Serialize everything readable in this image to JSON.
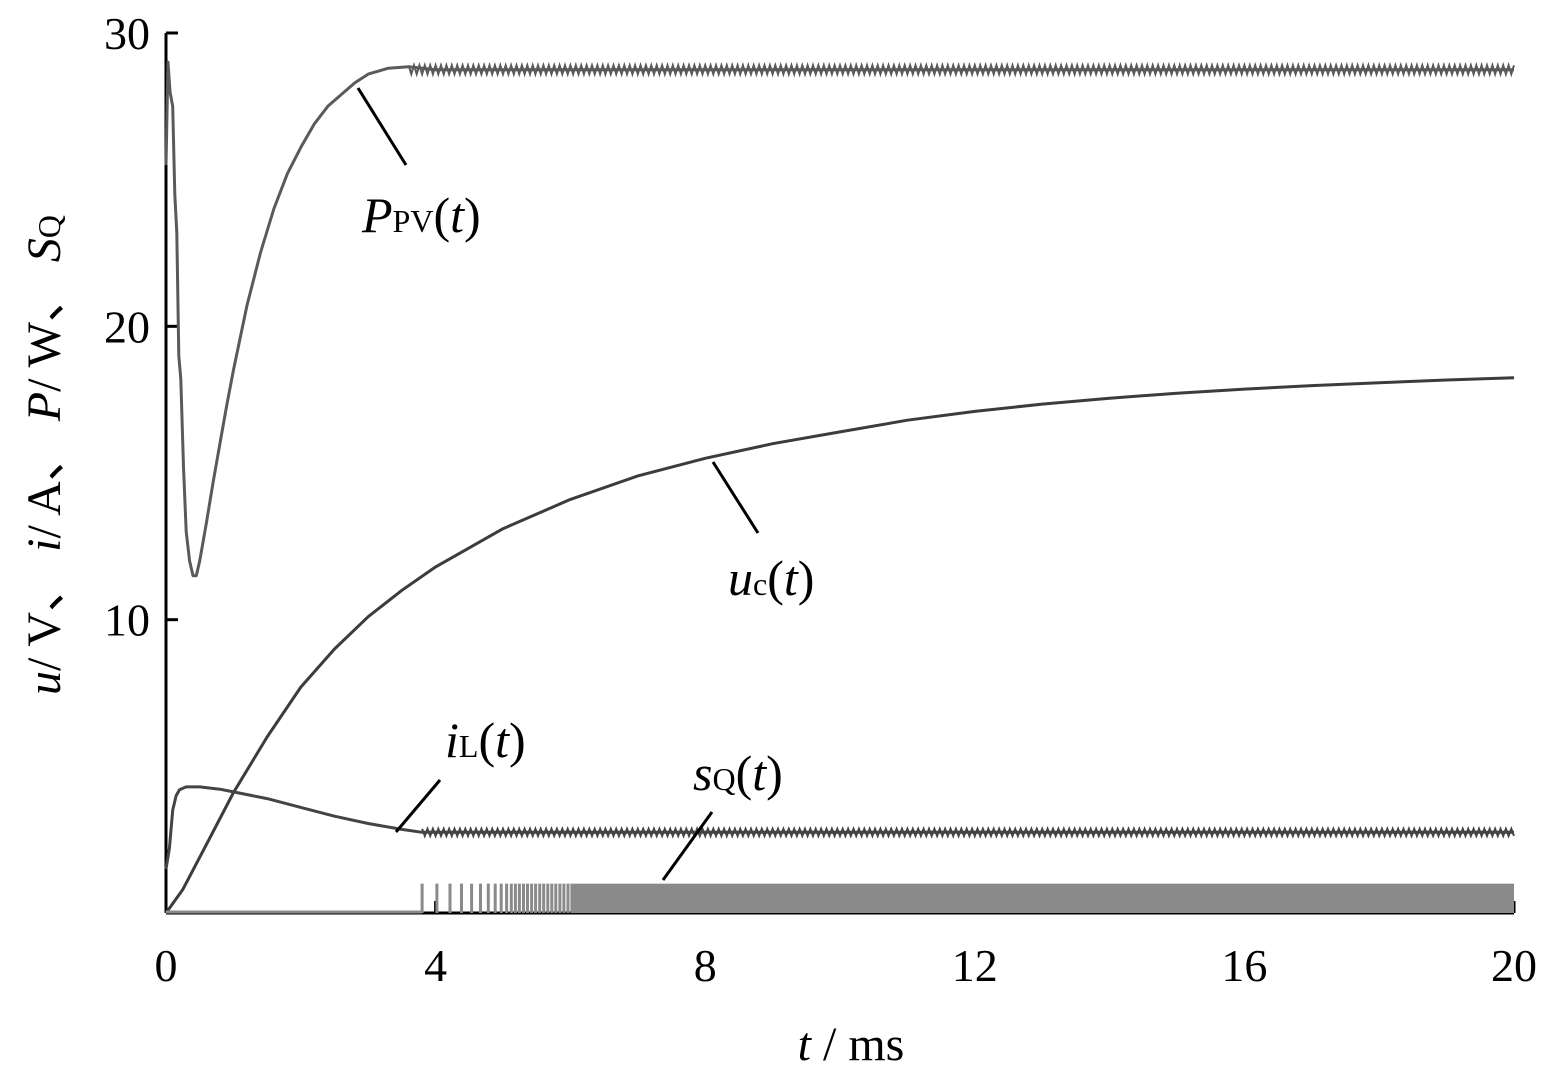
{
  "chart_data": {
    "type": "line",
    "xlabel": {
      "var": "t",
      "rest": " / ms"
    },
    "ylabel": [
      {
        "text": "u",
        "italic": true
      },
      {
        "text": "/ V、 ",
        "italic": false
      },
      {
        "text": "i",
        "italic": true
      },
      {
        "text": "/ A、 ",
        "italic": false
      },
      {
        "text": "P",
        "italic": true
      },
      {
        "text": "/ W、 ",
        "italic": false
      },
      {
        "text": "S",
        "italic": true
      },
      {
        "text": "Q",
        "italic": false,
        "sub": true
      }
    ],
    "xlim": [
      0,
      20
    ],
    "ylim": [
      0,
      30
    ],
    "xticks": [
      0,
      4,
      8,
      12,
      16,
      20
    ],
    "yticks": [
      10,
      20,
      30
    ],
    "x_tick_labels": [
      "0",
      "4",
      "8",
      "12",
      "16",
      "20"
    ],
    "y_tick_labels": [
      "10",
      "20",
      "30"
    ],
    "grid": false,
    "legend": "none",
    "colors": {
      "axis": "#000000",
      "dark": "#3c3c3c",
      "medium": "#555555",
      "light": "#8a8a8a"
    },
    "series": [
      {
        "key": "ppv",
        "label": {
          "main": "P",
          "sub": "PV",
          "arg": "(t)"
        },
        "color": "#5a5a5a",
        "points": [
          [
            0.0,
            25.5
          ],
          [
            0.03,
            29.0
          ],
          [
            0.06,
            28.0
          ],
          [
            0.1,
            27.5
          ],
          [
            0.13,
            24.5
          ],
          [
            0.16,
            23.2
          ],
          [
            0.19,
            19.0
          ],
          [
            0.22,
            18.2
          ],
          [
            0.26,
            15.2
          ],
          [
            0.3,
            13.0
          ],
          [
            0.35,
            12.0
          ],
          [
            0.4,
            11.5
          ],
          [
            0.45,
            11.5
          ],
          [
            0.5,
            12.0
          ],
          [
            0.6,
            13.3
          ],
          [
            0.7,
            14.7
          ],
          [
            0.8,
            16.0
          ],
          [
            0.9,
            17.3
          ],
          [
            1.0,
            18.5
          ],
          [
            1.2,
            20.7
          ],
          [
            1.4,
            22.5
          ],
          [
            1.6,
            24.0
          ],
          [
            1.8,
            25.2
          ],
          [
            2.0,
            26.1
          ],
          [
            2.2,
            26.9
          ],
          [
            2.4,
            27.5
          ],
          [
            2.6,
            27.9
          ],
          [
            2.8,
            28.3
          ],
          [
            3.0,
            28.6
          ],
          [
            3.3,
            28.8
          ],
          [
            3.6,
            28.85
          ],
          [
            4.0,
            28.75
          ],
          [
            6.0,
            28.75
          ],
          [
            10.0,
            28.75
          ],
          [
            14.0,
            28.75
          ],
          [
            20.0,
            28.75
          ]
        ],
        "ripple": {
          "from": 3.6,
          "to": 20,
          "amplitude": 0.15
        }
      },
      {
        "key": "uc",
        "label": {
          "main": "u",
          "sub": "c",
          "arg": "(t)"
        },
        "color": "#3c3c3c",
        "points": [
          [
            0.0,
            0.0
          ],
          [
            0.25,
            0.8
          ],
          [
            0.5,
            1.9
          ],
          [
            0.75,
            3.0
          ],
          [
            1.0,
            4.1
          ],
          [
            1.5,
            6.0
          ],
          [
            2.0,
            7.7
          ],
          [
            2.5,
            9.0
          ],
          [
            3.0,
            10.1
          ],
          [
            3.5,
            11.0
          ],
          [
            4.0,
            11.8
          ],
          [
            5.0,
            13.1
          ],
          [
            6.0,
            14.1
          ],
          [
            7.0,
            14.9
          ],
          [
            8.0,
            15.5
          ],
          [
            9.0,
            16.0
          ],
          [
            10.0,
            16.4
          ],
          [
            11.0,
            16.8
          ],
          [
            12.0,
            17.1
          ],
          [
            13.0,
            17.35
          ],
          [
            14.0,
            17.55
          ],
          [
            15.0,
            17.72
          ],
          [
            16.0,
            17.86
          ],
          [
            17.0,
            17.98
          ],
          [
            18.0,
            18.08
          ],
          [
            19.0,
            18.17
          ],
          [
            20.0,
            18.25
          ]
        ],
        "ripple": null
      },
      {
        "key": "il",
        "label": {
          "main": "i",
          "sub": "L",
          "arg": "(t)"
        },
        "color": "#444444",
        "points": [
          [
            0.0,
            1.5
          ],
          [
            0.05,
            2.2
          ],
          [
            0.1,
            3.5
          ],
          [
            0.15,
            4.0
          ],
          [
            0.2,
            4.2
          ],
          [
            0.3,
            4.3
          ],
          [
            0.5,
            4.3
          ],
          [
            0.8,
            4.22
          ],
          [
            1.0,
            4.13
          ],
          [
            1.5,
            3.9
          ],
          [
            2.0,
            3.6
          ],
          [
            2.5,
            3.3
          ],
          [
            3.0,
            3.05
          ],
          [
            3.5,
            2.85
          ],
          [
            3.8,
            2.75
          ],
          [
            4.0,
            2.75
          ],
          [
            6.0,
            2.75
          ],
          [
            10.0,
            2.75
          ],
          [
            14.0,
            2.75
          ],
          [
            20.0,
            2.75
          ]
        ],
        "ripple": {
          "from": 3.8,
          "to": 20,
          "amplitude": 0.12
        }
      },
      {
        "key": "sq",
        "label": {
          "main": "s",
          "sub": "Q",
          "arg": "(t)"
        },
        "color": "#8a8a8a",
        "switching": {
          "low": 0,
          "high": 1,
          "start": 3.8,
          "end": 20
        }
      }
    ]
  }
}
